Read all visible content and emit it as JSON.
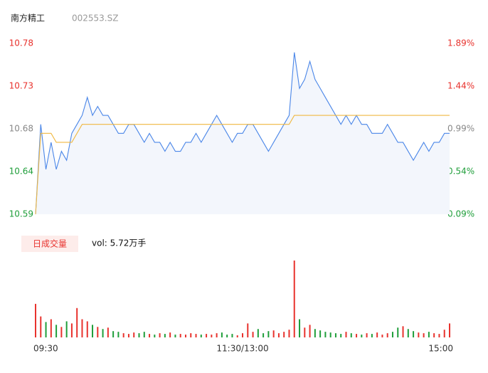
{
  "chart_data": {
    "type": "line",
    "title": "南方精工",
    "subtitle": "002553.SZ",
    "categories": [
      "09:30",
      null,
      null,
      null,
      null,
      null,
      null,
      null,
      null,
      null,
      null,
      null,
      null,
      null,
      null,
      null,
      null,
      null,
      null,
      null,
      null,
      null,
      null,
      null,
      null,
      null,
      null,
      null,
      null,
      null,
      null,
      null,
      null,
      null,
      null,
      null,
      null,
      null,
      null,
      null,
      "11:30/13:00",
      null,
      null,
      null,
      null,
      null,
      null,
      null,
      null,
      null,
      null,
      null,
      null,
      null,
      null,
      null,
      null,
      null,
      null,
      null,
      null,
      null,
      null,
      null,
      null,
      null,
      null,
      null,
      null,
      null,
      null,
      null,
      null,
      null,
      null,
      null,
      null,
      null,
      null,
      null,
      "15:00"
    ],
    "series": [
      {
        "color": "#4a86e8",
        "values": [
          10.59,
          10.69,
          10.64,
          10.67,
          10.64,
          10.66,
          10.65,
          10.68,
          10.69,
          10.7,
          10.72,
          10.7,
          10.71,
          10.7,
          10.7,
          10.69,
          10.68,
          10.68,
          10.69,
          10.69,
          10.68,
          10.67,
          10.68,
          10.67,
          10.67,
          10.66,
          10.67,
          10.66,
          10.66,
          10.67,
          10.67,
          10.68,
          10.67,
          10.68,
          10.69,
          10.7,
          10.69,
          10.68,
          10.67,
          10.68,
          10.68,
          10.69,
          10.69,
          10.68,
          10.67,
          10.66,
          10.67,
          10.68,
          10.69,
          10.7,
          10.77,
          10.73,
          10.74,
          10.76,
          10.74,
          10.73,
          10.72,
          10.71,
          10.7,
          10.69,
          10.7,
          10.69,
          10.7,
          10.69,
          10.69,
          10.68,
          10.68,
          10.68,
          10.69,
          10.68,
          10.67,
          10.67,
          10.66,
          10.65,
          10.66,
          10.67,
          10.66,
          10.67,
          10.67,
          10.68,
          10.68
        ]
      },
      {
        "color": "#f0b840",
        "values": [
          10.59,
          10.68,
          10.68,
          10.68,
          10.67,
          10.67,
          10.67,
          10.67,
          10.68,
          10.69,
          10.69,
          10.69,
          10.69,
          10.69,
          10.69,
          10.69,
          10.69,
          10.69,
          10.69,
          10.69,
          10.69,
          10.69,
          10.69,
          10.69,
          10.69,
          10.69,
          10.69,
          10.69,
          10.69,
          10.69,
          10.69,
          10.69,
          10.69,
          10.69,
          10.69,
          10.69,
          10.69,
          10.69,
          10.69,
          10.69,
          10.69,
          10.69,
          10.69,
          10.69,
          10.69,
          10.69,
          10.69,
          10.69,
          10.69,
          10.69,
          10.7,
          10.7,
          10.7,
          10.7,
          10.7,
          10.7,
          10.7,
          10.7,
          10.7,
          10.7,
          10.7,
          10.7,
          10.7,
          10.7,
          10.7,
          10.7,
          10.7,
          10.7,
          10.7,
          10.7,
          10.7,
          10.7,
          10.7,
          10.7,
          10.7,
          10.7,
          10.7,
          10.7,
          10.7,
          10.7,
          10.7
        ]
      }
    ],
    "ylim": [
      10.59,
      10.78
    ],
    "yticks": [
      10.59,
      {
        "value": 10.6375,
        "label": "10.64"
      },
      {
        "value": 10.685,
        "label": "10.68"
      },
      {
        "value": 10.7325,
        "label": "10.73"
      },
      10.78
    ],
    "y2lim": [
      0.09,
      1.89
    ],
    "y2ticks": [
      {
        "value": 0.09,
        "label": "0.09%"
      },
      {
        "value": 0.54,
        "label": "0.54%"
      },
      {
        "value": 0.99,
        "label": "0.99%"
      },
      {
        "value": 1.44,
        "label": "1.44%"
      },
      {
        "value": 1.89,
        "label": "1.89%"
      }
    ],
    "up_color": "#e8322d",
    "down_color": "#1f9e3a",
    "neutral_color": "#888888",
    "volume": {
      "label": "日成交量",
      "summary": "vol: 5.72万手",
      "values": [
        480,
        300,
        220,
        260,
        180,
        150,
        230,
        200,
        420,
        260,
        230,
        180,
        150,
        120,
        140,
        90,
        80,
        60,
        50,
        70,
        60,
        80,
        50,
        40,
        60,
        50,
        70,
        40,
        50,
        40,
        60,
        50,
        40,
        50,
        40,
        60,
        70,
        40,
        50,
        30,
        60,
        200,
        80,
        120,
        60,
        90,
        100,
        60,
        80,
        110,
        1100,
        260,
        140,
        180,
        120,
        100,
        80,
        70,
        60,
        50,
        80,
        60,
        50,
        40,
        60,
        50,
        70,
        40,
        60,
        80,
        140,
        160,
        120,
        90,
        70,
        60,
        80,
        60,
        50,
        110,
        200
      ]
    }
  }
}
